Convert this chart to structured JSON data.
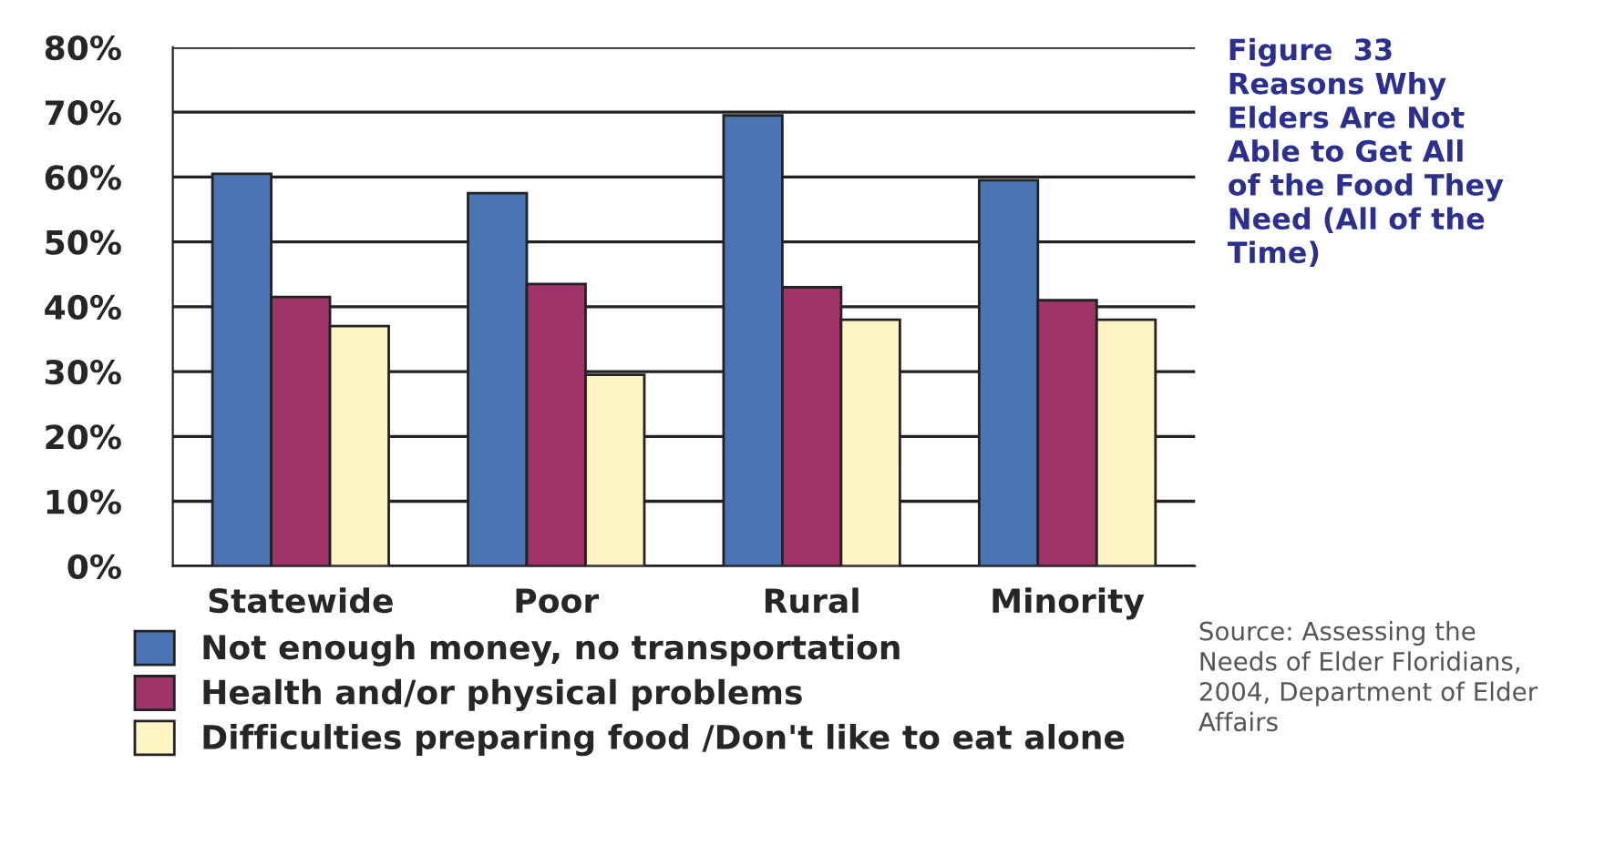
{
  "chart_data": {
    "type": "bar",
    "title": "Figure  33\nReasons Why\nElders Are Not\nAble to Get All\nof the Food They\nNeed (All of the\nTime)",
    "categories": [
      "Statewide",
      "Poor",
      "Rural",
      "Minority"
    ],
    "series": [
      {
        "name": "Not enough money, no transportation",
        "color": "#4a74b4",
        "values": [
          60.5,
          57.5,
          69.5,
          59.5
        ]
      },
      {
        "name": "Health and/or physical problems",
        "color": "#a03468",
        "values": [
          41.5,
          43.5,
          43,
          41
        ]
      },
      {
        "name": "Difficulties preparing food /Don't like to eat alone",
        "color": "#fff5c4",
        "values": [
          37,
          29.5,
          38,
          38
        ]
      }
    ],
    "ylim": [
      0,
      80
    ],
    "yticks": [
      {
        "value": 0,
        "label": "0%"
      },
      {
        "value": 10,
        "label": "10%"
      },
      {
        "value": 20,
        "label": "20%"
      },
      {
        "value": 30,
        "label": "30%"
      },
      {
        "value": 40,
        "label": "40%"
      },
      {
        "value": 50,
        "label": "50%"
      },
      {
        "value": 60,
        "label": "60%"
      },
      {
        "value": 70,
        "label": "70%"
      },
      {
        "value": 80,
        "label": "80%"
      }
    ],
    "grid": "y",
    "legend": "bottom",
    "annotations": [
      "Source: Assessing the\nNeeds of Elder Floridians,\n2004, Department of Elder\nAffairs"
    ]
  }
}
